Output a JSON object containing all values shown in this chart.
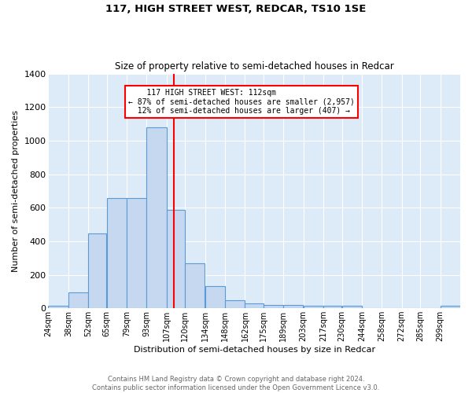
{
  "title1": "117, HIGH STREET WEST, REDCAR, TS10 1SE",
  "title2": "Size of property relative to semi-detached houses in Redcar",
  "xlabel": "Distribution of semi-detached houses by size in Redcar",
  "ylabel": "Number of semi-detached properties",
  "footer1": "Contains HM Land Registry data © Crown copyright and database right 2024.",
  "footer2": "Contains public sector information licensed under the Open Government Licence v3.0.",
  "annotation_line1": "    117 HIGH STREET WEST: 112sqm    ",
  "annotation_line2": "← 87% of semi-detached houses are smaller (2,957)",
  "annotation_line3": "  12% of semi-detached houses are larger (407) →",
  "property_size": 112,
  "vline_x": 112,
  "bar_color": "#c5d8f0",
  "bar_edge_color": "#5b9bd5",
  "vline_color": "red",
  "background_color": "#ddeaf8",
  "categories": [
    "24sqm",
    "38sqm",
    "52sqm",
    "65sqm",
    "79sqm",
    "93sqm",
    "107sqm",
    "120sqm",
    "134sqm",
    "148sqm",
    "162sqm",
    "175sqm",
    "189sqm",
    "203sqm",
    "217sqm",
    "230sqm",
    "244sqm",
    "258sqm",
    "272sqm",
    "285sqm",
    "299sqm"
  ],
  "bin_edges": [
    24,
    38,
    52,
    65,
    79,
    93,
    107,
    120,
    134,
    148,
    162,
    175,
    189,
    203,
    217,
    230,
    244,
    258,
    272,
    285,
    299
  ],
  "values": [
    13,
    95,
    448,
    657,
    657,
    1080,
    585,
    270,
    130,
    50,
    30,
    20,
    20,
    15,
    15,
    13,
    0,
    0,
    0,
    0,
    13
  ],
  "ylim": [
    0,
    1400
  ],
  "yticks": [
    0,
    200,
    400,
    600,
    800,
    1000,
    1200,
    1400
  ]
}
